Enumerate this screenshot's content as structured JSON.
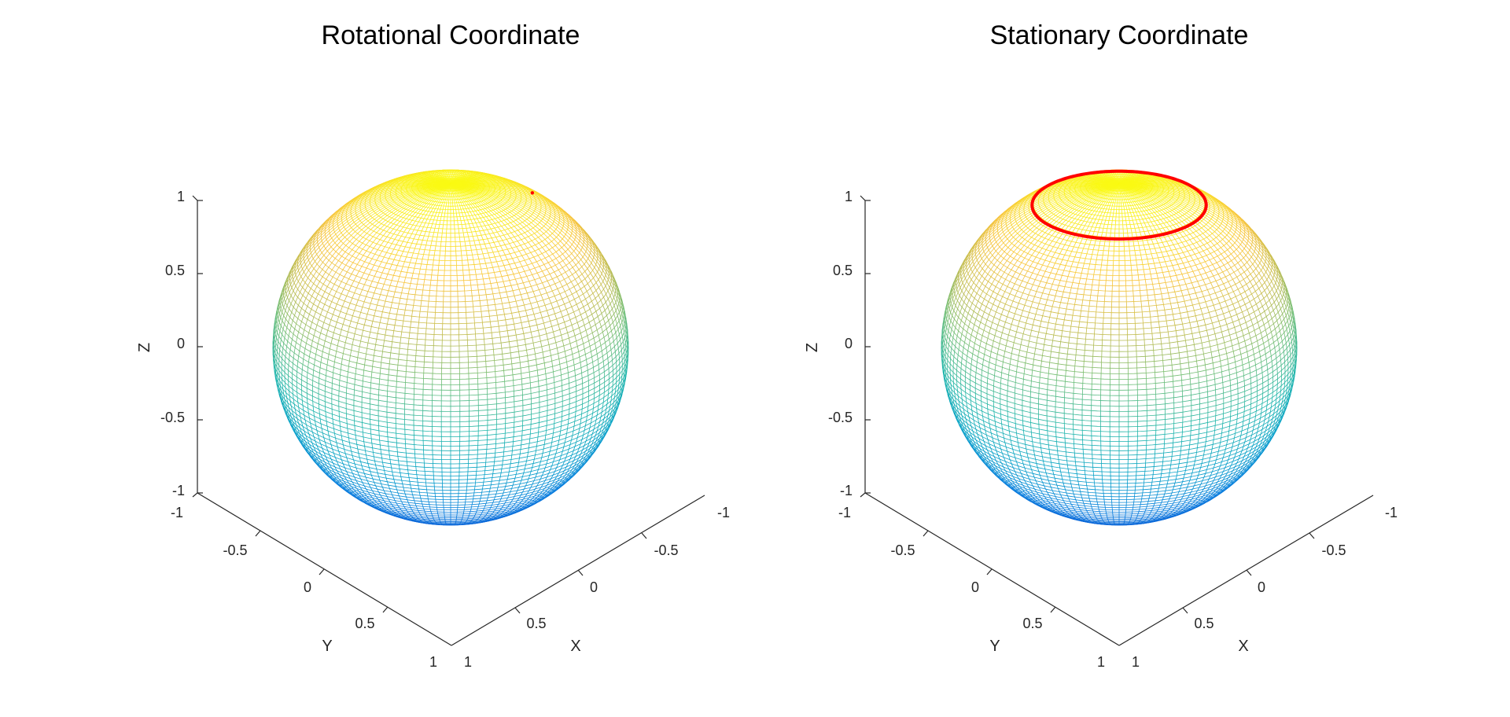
{
  "figure": {
    "background": "#ffffff",
    "colormap": "parula"
  },
  "chart_data": [
    {
      "type": "surface",
      "surface": "unit sphere",
      "mesh": "wireframe",
      "colormap": "parula",
      "color_by": "z",
      "title": "Rotational Coordinate",
      "xlabel": "X",
      "ylabel": "Y",
      "zlabel": "Z",
      "xlim": [
        -1,
        1
      ],
      "ylim": [
        -1,
        1
      ],
      "zlim": [
        -1,
        1
      ],
      "xticks": [
        "-1",
        "-0.5",
        "0",
        "0.5",
        "1"
      ],
      "yticks": [
        "-1",
        "-0.5",
        "0",
        "0.5",
        "1"
      ],
      "zticks": [
        "-1",
        "-0.5",
        "0",
        "0.5",
        "1"
      ],
      "overlay": {
        "type": "point",
        "color": "#ff0000",
        "x": 0.2,
        "y": -0.45,
        "z": 0.87
      }
    },
    {
      "type": "surface",
      "surface": "unit sphere",
      "mesh": "wireframe",
      "colormap": "parula",
      "color_by": "z",
      "title": "Stationary Coordinate",
      "xlabel": "X",
      "ylabel": "Y",
      "zlabel": "Z",
      "xlim": [
        -1,
        1
      ],
      "ylim": [
        -1,
        1
      ],
      "zlim": [
        -1,
        1
      ],
      "xticks": [
        "-1",
        "-0.5",
        "0",
        "0.5",
        "1"
      ],
      "yticks": [
        "-1",
        "-0.5",
        "0",
        "0.5",
        "1"
      ],
      "zticks": [
        "-1",
        "-0.5",
        "0",
        "0.5",
        "1"
      ],
      "overlay": {
        "type": "circle",
        "color": "#ff0000",
        "z": 0.87,
        "radius": 0.49
      }
    }
  ]
}
